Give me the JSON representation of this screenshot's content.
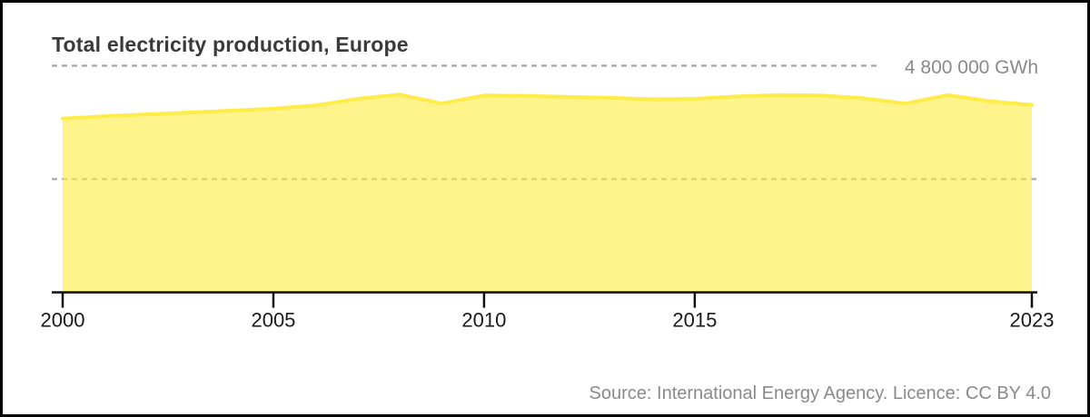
{
  "title": "Total electricity production, Europe",
  "source": "Source: International Energy Agency. Licence: CC BY 4.0",
  "colors": {
    "background": "#ffffff",
    "frame_border": "#000000",
    "title_text": "#3a3a3c",
    "muted_text": "#8a8a8a",
    "grid_line": "#a6a6a6",
    "axis_line": "#111111",
    "axis_label_text": "#1a1a1a",
    "area_line": "#ffec47",
    "area_fill": "rgba(255,237,70,0.62)"
  },
  "chart_data": {
    "type": "area",
    "title": "Total electricity production, Europe",
    "unit": "GWh",
    "x": [
      2000,
      2001,
      2002,
      2003,
      2004,
      2005,
      2006,
      2007,
      2008,
      2009,
      2010,
      2011,
      2012,
      2013,
      2014,
      2015,
      2016,
      2017,
      2018,
      2019,
      2020,
      2021,
      2022,
      2023
    ],
    "values": [
      3680000,
      3730000,
      3770000,
      3810000,
      3850000,
      3890000,
      3960000,
      4100000,
      4190000,
      4000000,
      4170000,
      4160000,
      4140000,
      4120000,
      4090000,
      4100000,
      4150000,
      4180000,
      4170000,
      4110000,
      4000000,
      4180000,
      4050000,
      3970000
    ],
    "ylim": [
      0,
      4800000
    ],
    "x_ticks": [
      2000,
      2005,
      2010,
      2015,
      2023
    ],
    "gridlines": [
      {
        "value": 4800000,
        "label": "4 800 000 GWh"
      },
      {
        "value": 2400000,
        "label": ""
      }
    ],
    "grid": "horizontal-dashed",
    "legend": "none",
    "xlabel": "",
    "ylabel": ""
  }
}
